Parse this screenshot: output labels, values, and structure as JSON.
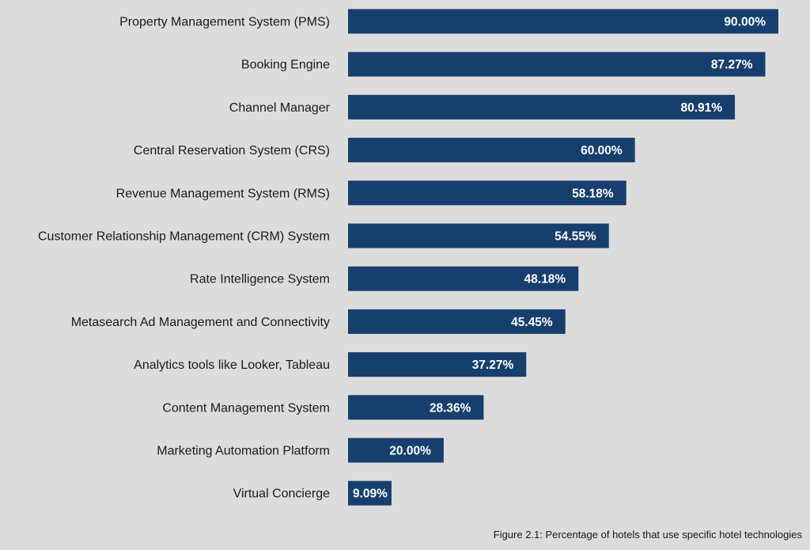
{
  "chart_data": {
    "type": "bar",
    "orientation": "horizontal",
    "categories": [
      "Property Management System (PMS)",
      "Booking Engine",
      "Channel Manager",
      "Central Reservation System (CRS)",
      "Revenue Management System (RMS)",
      "Customer Relationship Management (CRM) System",
      "Rate Intelligence System",
      "Metasearch Ad Management and Connectivity",
      "Analytics tools like Looker, Tableau",
      "Content Management System",
      "Marketing Automation Platform",
      "Virtual Concierge"
    ],
    "values": [
      90.0,
      87.27,
      80.91,
      60.0,
      58.18,
      54.55,
      48.18,
      45.45,
      37.27,
      28.36,
      20.0,
      9.09
    ],
    "value_labels": [
      "90.00%",
      "87.27%",
      "80.91%",
      "60.00%",
      "58.18%",
      "54.55%",
      "48.18%",
      "45.45%",
      "37.27%",
      "28.36%",
      "20.00%",
      "9.09%"
    ],
    "caption": "Figure 2.1: Percentage of hotels that use specific hotel technologies",
    "xlim": [
      0,
      90
    ],
    "grid": false,
    "legend": "none",
    "bar_color": "#173f6e",
    "background": "#dcdcdc"
  }
}
